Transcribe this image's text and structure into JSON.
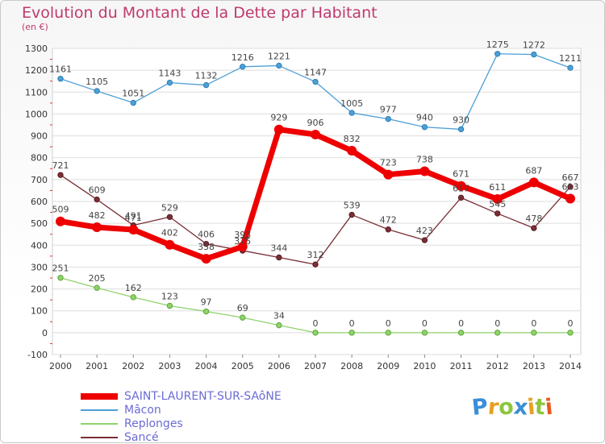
{
  "chart_data": {
    "type": "line",
    "title": "Evolution du Montant de la Dette par Habitant",
    "subtitle": "(en €)",
    "ylim": [
      -100,
      1300
    ],
    "yticks": [
      -100,
      0,
      100,
      200,
      300,
      400,
      500,
      600,
      700,
      800,
      900,
      1000,
      1100,
      1200,
      1300
    ],
    "grid": true,
    "legend_position": "bottom-left",
    "x": [
      "2000",
      "2001",
      "2002",
      "2003",
      "2004",
      "2005",
      "2006",
      "2007",
      "2008",
      "2009",
      "2010",
      "2011",
      "2012",
      "2013",
      "2014"
    ],
    "series": [
      {
        "name": "SAINT-LAURENT-SUR-SAôNE",
        "color": "#ee0000",
        "values": [
          509,
          482,
          471,
          402,
          338,
          393,
          929,
          906,
          832,
          723,
          738,
          671,
          611,
          687,
          613
        ],
        "labels": [
          "509",
          "482",
          "471",
          "402",
          "338",
          "393",
          "929",
          "906",
          "832",
          "723",
          "738",
          "671",
          "611",
          "687",
          "613"
        ]
      },
      {
        "name": "Mâcon",
        "color": "#4e9fd6",
        "values": [
          1161,
          1105,
          1051,
          1143,
          1132,
          1216,
          1221,
          1147,
          1005,
          977,
          940,
          930,
          1275,
          1272,
          1211
        ],
        "labels": [
          "1161",
          "1105",
          "1051",
          "1143",
          "1132",
          "1216",
          "1221",
          "1147",
          "1005",
          "977",
          "940",
          "930",
          "1275",
          "1272",
          "1211"
        ]
      },
      {
        "name": "Replonges",
        "color": "#8fd36b",
        "values": [
          251,
          205,
          162,
          123,
          97,
          69,
          34,
          0,
          0,
          0,
          0,
          0,
          0,
          0,
          0
        ],
        "labels": [
          "251",
          "205",
          "162",
          "123",
          "97",
          "69",
          "34",
          "0",
          "0",
          "0",
          "0",
          "0",
          "0",
          "0",
          "0"
        ]
      },
      {
        "name": "Sancé",
        "color": "#7a2e35",
        "values": [
          721,
          609,
          491,
          529,
          406,
          375,
          344,
          312,
          539,
          472,
          423,
          617,
          545,
          478,
          667
        ],
        "labels": [
          "721",
          "609",
          "491",
          "529",
          "406",
          "375",
          "344",
          "312",
          "539",
          "472",
          "423",
          "617",
          "545",
          "478",
          "667"
        ]
      }
    ]
  },
  "logo": {
    "letters": [
      "P",
      "r",
      "o",
      "x",
      "i",
      "t",
      "i"
    ],
    "colors": [
      "#3a8fd8",
      "#e8a020",
      "#8cc63f",
      "#3a8fd8",
      "#e8a020",
      "#8cc63f",
      "#e85a20"
    ]
  }
}
